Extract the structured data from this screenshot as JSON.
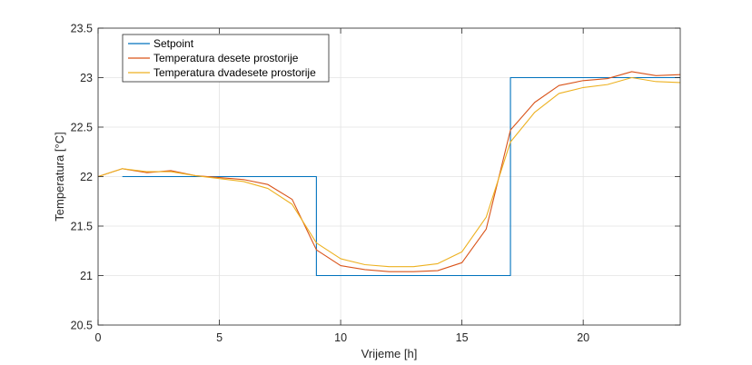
{
  "chart_data": {
    "type": "line",
    "xlabel": "Vrijeme [h]",
    "ylabel": "Temperatura [°C]",
    "xlim": [
      0,
      24
    ],
    "ylim": [
      20.5,
      23.5
    ],
    "xticks": [
      0,
      5,
      10,
      15,
      20
    ],
    "yticks": [
      20.5,
      21,
      21.5,
      22,
      22.5,
      23,
      23.5
    ],
    "xtick_labels": [
      "0",
      "5",
      "10",
      "15",
      "20"
    ],
    "ytick_labels": [
      "20.5",
      "21",
      "21.5",
      "22",
      "22.5",
      "23",
      "23.5"
    ],
    "grid": true,
    "legend_position": "top-left",
    "series": [
      {
        "name": "Setpoint",
        "color": "#0072bd",
        "step": true,
        "x": [
          1,
          9,
          9,
          17,
          17,
          24
        ],
        "y": [
          22,
          22,
          21,
          21,
          23,
          23
        ]
      },
      {
        "name": "Temperatura desete prostorije",
        "color": "#d95319",
        "x": [
          0,
          1,
          2,
          3,
          4,
          5,
          6,
          7,
          8,
          9,
          10,
          11,
          12,
          13,
          14,
          15,
          16,
          17,
          18,
          19,
          20,
          21,
          22,
          23,
          24
        ],
        "y": [
          22.0,
          22.08,
          22.04,
          22.06,
          22.01,
          21.99,
          21.97,
          21.92,
          21.77,
          21.26,
          21.1,
          21.06,
          21.04,
          21.04,
          21.05,
          21.13,
          21.47,
          22.47,
          22.75,
          22.92,
          22.97,
          22.99,
          23.06,
          23.02,
          23.03
        ]
      },
      {
        "name": "Temperatura dvadesete prostorije",
        "color": "#edb120",
        "x": [
          0,
          1,
          2,
          3,
          4,
          5,
          6,
          7,
          8,
          9,
          10,
          11,
          12,
          13,
          14,
          15,
          16,
          17,
          18,
          19,
          20,
          21,
          22,
          23,
          24
        ],
        "y": [
          22.0,
          22.08,
          22.05,
          22.05,
          22.01,
          21.98,
          21.95,
          21.88,
          21.72,
          21.33,
          21.17,
          21.11,
          21.09,
          21.09,
          21.12,
          21.24,
          21.59,
          22.35,
          22.65,
          22.84,
          22.9,
          22.93,
          23.0,
          22.96,
          22.95
        ]
      }
    ]
  }
}
